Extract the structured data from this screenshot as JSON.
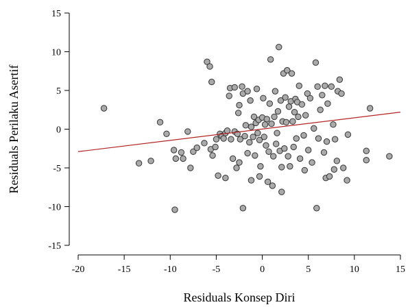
{
  "chart_data": {
    "type": "scatter",
    "title": "",
    "xlabel": "Residuals Konsep Diri",
    "ylabel": "Residuals Perilaku Asertif",
    "xlim": [
      -20,
      15
    ],
    "ylim": [
      -15,
      15
    ],
    "xticks": [
      -20,
      -15,
      -10,
      -5,
      0,
      5,
      10,
      15
    ],
    "yticks": [
      -15,
      -10,
      -5,
      0,
      5,
      10,
      15
    ],
    "xtick_labels": [
      "-20",
      "-15",
      "-10",
      "-5",
      "0",
      "5",
      "10",
      "15"
    ],
    "ytick_labels": [
      "-15",
      "-10",
      "-5",
      "0",
      "5",
      "10",
      "15"
    ],
    "grid": false,
    "point_color": "#aaaaaa",
    "line_color": "#b22222",
    "regression_line": {
      "x": [
        -20,
        15
      ],
      "y": [
        -2.9,
        2.2
      ]
    },
    "points": [
      [
        -17.2,
        2.7
      ],
      [
        -13.4,
        -4.4
      ],
      [
        -12.1,
        -4.1
      ],
      [
        -11.1,
        0.9
      ],
      [
        -10.4,
        -0.6
      ],
      [
        -9.6,
        -2.7
      ],
      [
        -9.5,
        -10.4
      ],
      [
        -9.4,
        -3.8
      ],
      [
        -8.8,
        -3.0
      ],
      [
        -8.6,
        -3.8
      ],
      [
        -8.1,
        -0.3
      ],
      [
        -7.8,
        -5.0
      ],
      [
        -7.5,
        -2.9
      ],
      [
        -7.1,
        -2.4
      ],
      [
        -6.3,
        -1.8
      ],
      [
        -6.0,
        8.7
      ],
      [
        -5.7,
        8.1
      ],
      [
        -5.5,
        6.1
      ],
      [
        -5.6,
        -2.6
      ],
      [
        -5.4,
        -3.4
      ],
      [
        -5.1,
        -2.3
      ],
      [
        -5.0,
        -1.3
      ],
      [
        -4.8,
        -6.0
      ],
      [
        -4.6,
        -0.6
      ],
      [
        -4.4,
        -0.9
      ],
      [
        -4.2,
        -1.2
      ],
      [
        -4.0,
        -0.5
      ],
      [
        -4.0,
        -6.3
      ],
      [
        -3.8,
        -0.2
      ],
      [
        -3.6,
        4.3
      ],
      [
        -3.5,
        5.3
      ],
      [
        -3.4,
        -1.3
      ],
      [
        -3.2,
        -3.8
      ],
      [
        -3.0,
        -0.3
      ],
      [
        -3.0,
        5.4
      ],
      [
        -2.8,
        -5.0
      ],
      [
        -2.7,
        -0.6
      ],
      [
        -2.6,
        2.1
      ],
      [
        -2.5,
        3.1
      ],
      [
        -2.5,
        -4.3
      ],
      [
        -2.4,
        -1.3
      ],
      [
        -2.2,
        5.5
      ],
      [
        -2.1,
        4.6
      ],
      [
        -2.1,
        -10.2
      ],
      [
        -1.9,
        -0.9
      ],
      [
        -1.8,
        0.5
      ],
      [
        -1.6,
        -3.1
      ],
      [
        -1.6,
        4.9
      ],
      [
        -1.4,
        -1.7
      ],
      [
        -1.3,
        3.7
      ],
      [
        -1.2,
        0.3
      ],
      [
        -1.2,
        -6.6
      ],
      [
        -1.0,
        -1.0
      ],
      [
        -0.9,
        1.6
      ],
      [
        -0.8,
        -3.4
      ],
      [
        -0.7,
        0.8
      ],
      [
        -0.6,
        5.2
      ],
      [
        -0.5,
        -0.5
      ],
      [
        -0.4,
        1.2
      ],
      [
        -0.3,
        -1.4
      ],
      [
        -0.3,
        -6.1
      ],
      [
        -0.2,
        -4.8
      ],
      [
        0.0,
        1.5
      ],
      [
        0.1,
        4.0
      ],
      [
        0.2,
        -1.0
      ],
      [
        0.3,
        0.6
      ],
      [
        0.4,
        -2.1
      ],
      [
        0.5,
        1.3
      ],
      [
        0.6,
        -6.8
      ],
      [
        0.7,
        -2.9
      ],
      [
        0.8,
        3.3
      ],
      [
        0.9,
        9.0
      ],
      [
        1.0,
        0.7
      ],
      [
        1.1,
        -7.3
      ],
      [
        1.2,
        -3.5
      ],
      [
        1.3,
        1.6
      ],
      [
        1.4,
        4.9
      ],
      [
        1.5,
        -1.9
      ],
      [
        1.6,
        -0.5
      ],
      [
        1.7,
        2.3
      ],
      [
        1.8,
        10.6
      ],
      [
        1.9,
        -2.8
      ],
      [
        2.0,
        3.7
      ],
      [
        2.1,
        -4.9
      ],
      [
        2.1,
        -8.1
      ],
      [
        2.2,
        1.0
      ],
      [
        2.3,
        7.2
      ],
      [
        2.4,
        -2.5
      ],
      [
        2.5,
        4.1
      ],
      [
        2.6,
        0.9
      ],
      [
        2.7,
        7.6
      ],
      [
        2.8,
        -3.5
      ],
      [
        2.9,
        2.9
      ],
      [
        3.0,
        -4.8
      ],
      [
        3.1,
        3.6
      ],
      [
        3.2,
        7.2
      ],
      [
        3.3,
        1.0
      ],
      [
        3.4,
        -2.3
      ],
      [
        3.5,
        2.2
      ],
      [
        3.6,
        3.9
      ],
      [
        3.7,
        -1.2
      ],
      [
        3.8,
        3.5
      ],
      [
        3.9,
        1.6
      ],
      [
        4.0,
        5.6
      ],
      [
        4.1,
        -3.8
      ],
      [
        4.3,
        3.2
      ],
      [
        4.5,
        -0.8
      ],
      [
        4.6,
        -5.3
      ],
      [
        4.7,
        1.8
      ],
      [
        4.9,
        4.6
      ],
      [
        5.0,
        -2.7
      ],
      [
        5.2,
        4.0
      ],
      [
        5.4,
        -4.3
      ],
      [
        5.6,
        0.1
      ],
      [
        5.8,
        8.6
      ],
      [
        5.9,
        -10.2
      ],
      [
        6.0,
        5.5
      ],
      [
        6.1,
        -1.2
      ],
      [
        6.3,
        2.5
      ],
      [
        6.5,
        4.4
      ],
      [
        6.7,
        -3.0
      ],
      [
        6.8,
        5.6
      ],
      [
        6.9,
        -6.3
      ],
      [
        7.0,
        -1.6
      ],
      [
        7.1,
        3.3
      ],
      [
        7.3,
        -6.1
      ],
      [
        7.5,
        5.5
      ],
      [
        7.7,
        0.6
      ],
      [
        7.8,
        -5.2
      ],
      [
        7.9,
        -1.3
      ],
      [
        8.1,
        -4.1
      ],
      [
        8.2,
        4.9
      ],
      [
        8.4,
        6.4
      ],
      [
        8.6,
        4.6
      ],
      [
        8.8,
        -5.0
      ],
      [
        9.2,
        -6.6
      ],
      [
        9.3,
        -0.7
      ],
      [
        11.3,
        -2.8
      ],
      [
        11.3,
        -4.0
      ],
      [
        11.7,
        2.7
      ],
      [
        13.8,
        -3.5
      ]
    ]
  }
}
